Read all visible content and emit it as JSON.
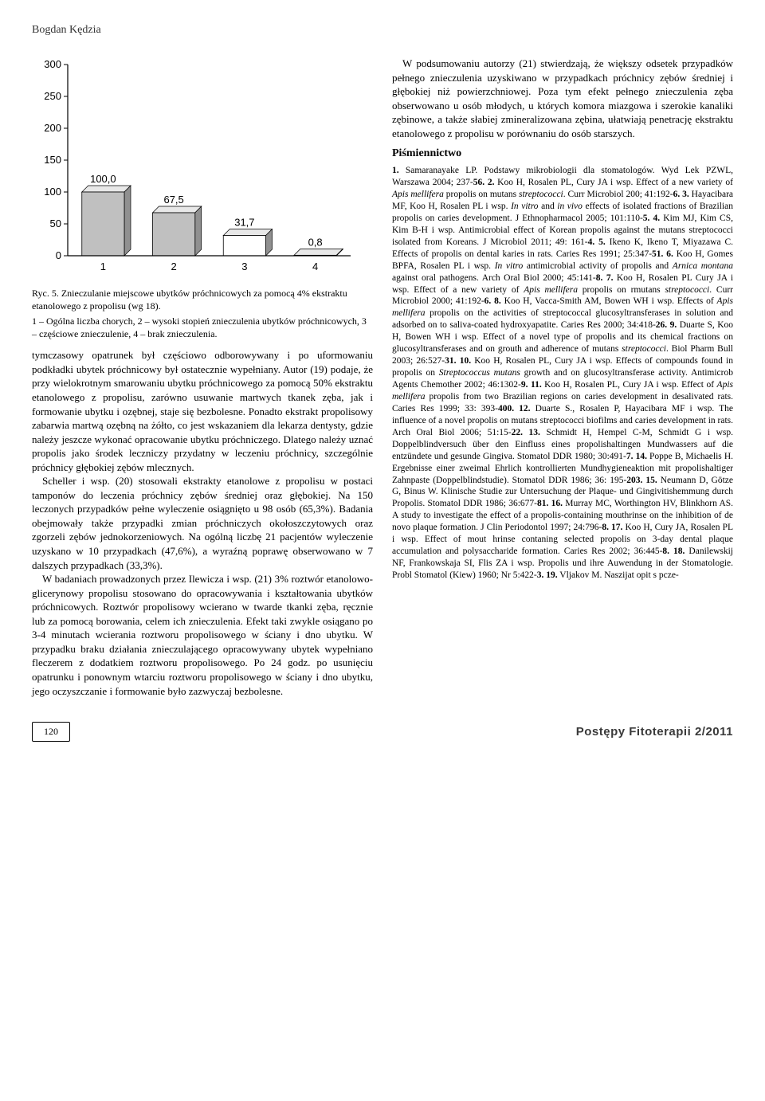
{
  "author": "Bogdan Kędzia",
  "chart": {
    "type": "bar",
    "categories": [
      "1",
      "2",
      "3",
      "4"
    ],
    "values": [
      100.0,
      67.5,
      31.7,
      0.8
    ],
    "bar_labels": [
      "100,0",
      "67,5",
      "31,7",
      "0,8"
    ],
    "ylim": [
      0,
      300
    ],
    "ytick_step": 50,
    "yticks": [
      "0",
      "50",
      "100",
      "150",
      "200",
      "250",
      "300"
    ],
    "bar_fill_color": "#c0c0c0",
    "bar_fill_color_alt": "#ffffff",
    "bar_stroke_color": "#000000",
    "axis_color": "#000000",
    "label_fontsize": 13,
    "axis_fontsize": 13,
    "bar_width": 0.6
  },
  "fig_caption": "Ryc. 5. Znieczulanie miejscowe ubytków próchnicowych za pomocą 4% ekstraktu etanolowego z propolisu (wg 18).",
  "fig_legend": "1 – Ogólna liczba chorych, 2 – wysoki stopień znieczulenia ubytków próchnicowych, 3 – częściowe znieczulenie, 4 – brak znieczulenia.",
  "left_paragraphs": [
    "tymczasowy opatrunek był częściowo odborowywany i po uformowaniu podkładki ubytek próchnicowy był ostatecznie wypełniany. Autor (19) podaje, że przy wielokrotnym smarowaniu ubytku próchnicowego za pomocą 50% ekstraktu etanolowego z propolisu, zarówno usuwanie martwych tkanek zęba, jak i formowanie ubytku i ozębnej, staje się bezbolesne. Ponadto ekstrakt propolisowy zabarwia martwą ozębną na żółto, co jest wskazaniem dla lekarza dentysty, gdzie należy jeszcze wykonać opracowanie ubytku próchniczego. Dlatego należy uznać propolis jako środek leczniczy przydatny w leczeniu próchnicy, szczególnie próchnicy głębokiej zębów mlecznych.",
    "Scheller i wsp. (20) stosowali ekstrakty etanolowe z propolisu w postaci tamponów do leczenia próchnicy zębów średniej oraz głębokiej. Na 150 leczonych przypadków pełne wyleczenie osiągnięto u 98 osób (65,3%). Badania obejmowały także przypadki zmian próchniczych okołoszczytowych oraz zgorzeli zębów jednokorzeniowych. Na ogólną liczbę 21 pacjentów wyleczenie uzyskano w 10 przypadkach (47,6%), a wyraźną poprawę obserwowano w 7 dalszych przypadkach (33,3%).",
    "W badaniach prowadzonych przez Ilewicza i wsp. (21) 3% roztwór etanolowo-glicerynowy propolisu stosowano do opracowywania i kształtowania ubytków próchnicowych. Roztwór propolisowy wcierano w twarde tkanki zęba, ręcznie lub za pomocą borowania, celem ich znieczulenia. Efekt taki zwykle osiągano po 3-4 minutach wcierania roztworu propolisowego w ściany i dno ubytku. W przypadku braku działania znieczulającego opracowywany ubytek wypełniano fleczerem z dodatkiem roztworu propolisowego. Po 24 godz. po usunięciu opatrunku i ponownym wtarciu roztworu propolisowego w ściany i dno ubytku, jego oczyszczanie i formowanie było zazwyczaj bezbolesne."
  ],
  "right_intro": "W podsumowaniu autorzy (21) stwierdzają, że większy odsetek przypadków pełnego znieczulenia uzyskiwano w przypadkach próchnicy zębów średniej i głębokiej niż powierzchniowej. Poza tym efekt pełnego znieczulenia zęba obserwowano u osób młodych, u których komora miazgowa i szerokie kanaliki zębinowe, a także słabiej zmineralizowana zębina, ułatwiają penetrację ekstraktu etanolowego z propolisu w porównaniu do osób starszych.",
  "refs_head": "Piśmiennictwo",
  "refs_body": "1. Samaranayake LP. Podstawy mikrobiologii dla stomatologów. Wyd Lek PZWL, Warszawa 2004; 237-56. 2. Koo H, Rosalen PL, Cury JA i wsp. Effect of a new variety of Apis mellifera propolis on mutans streptococci. Curr Microbiol 200; 41:192-6. 3. Hayacibara MF, Koo H, Rosalen PL i wsp. In vitro and in vivo effects of isolated fractions of Brazilian propolis on caries development. J Ethnopharmacol 2005; 101:110-5. 4. Kim MJ, Kim CS, Kim B-H i wsp. Antimicrobial effect of Korean propolis against the mutans streptococci isolated from Koreans. J Microbiol 2011; 49: 161-4. 5. Ikeno K, Ikeno T, Miyazawa C. Effects of propolis on dental karies in rats. Caries Res 1991; 25:347-51. 6. Koo H, Gomes BPFA, Rosalen PL i wsp. In vitro antimicrobial activity of propolis and Arnica montana against oral pathogens. Arch Oral Biol 2000; 45:141-8. 7. Koo H, Rosalen PL Cury JA i wsp. Effect of a new variety of Apis mellifera propolis on rmutans streptococci. Curr Microbiol 2000; 41:192-6. 8. Koo H, Vacca-Smith AM, Bowen WH i wsp. Effects of Apis mellifera propolis on the activities of streptococcal glucosyltransferases in solution and adsorbed on to saliva-coated hydroxyapatite. Caries Res 2000; 34:418-26. 9. Duarte S, Koo H, Bowen WH i wsp. Effect of a novel type of propolis and its chemical fractions on glucosyltransferases and on grouth and adherence of mutans streptococci. Biol Pharm Bull 2003; 26:527-31. 10. Koo H, Rosalen PL, Cury JA i wsp. Effects of compounds found in propolis on Streptococcus mutans growth and on glucosyltransferase activity. Antimicrob Agents Chemother 2002; 46:1302-9. 11. Koo H, Rosalen PL, Cury JA i wsp. Effect of Apis mellifera propolis from two Brazilian regions on caries development in desalivated rats. Caries Res 1999; 33: 393-400. 12. Duarte S., Rosalen P, Hayacibara MF i wsp. The influence of a novel propolis on mutans streptococci biofilms and caries development in rats. Arch Oral Biol 2006; 51:15-22. 13. Schmidt H, Hempel C-M, Schmidt G i wsp. Doppelblindversuch über den Einfluss eines propolishaltingen Mundwassers auf die entzündete und gesunde Gingiva. Stomatol DDR 1980; 30:491-7. 14. Poppe B, Michaelis H. Ergebnisse einer zweimal Ehrlich kontrollierten Mundhygieneaktion mit propolishaltiger Zahnpaste (Doppelblindstudie). Stomatol DDR 1986; 36: 195-203. 15. Neumann D, Götze G, Binus W. Klinische Studie zur Untersuchung der Plaque- und Gingivitishemmung durch Propolis. Stomatol DDR 1986; 36:677-81. 16. Murray MC, Worthington HV, Blinkhorn AS. A study to investigate the effect of a propolis-containing mouthrinse on the inhibition of de novo plaque formation. J Clin Periodontol 1997; 24:796-8. 17. Koo H, Cury JA, Rosalen PL i wsp. Effect of mout hrinse contaning selected propolis on 3-day dental plaque accumulation and polysaccharide formation. Caries Res 2002; 36:445-8. 18. Danilewskij NF, Frankowskaja SI, Flis ZA i wsp. Propolis und ihre Auwendung in der Stomatologie. Probl Stomatol (Kiew) 1960; Nr 5:422-3. 19. Vljakov M. Naszijat opit s pcze-",
  "page_number": "120",
  "journal": "Postępy  Fitoterapii 2/2011"
}
